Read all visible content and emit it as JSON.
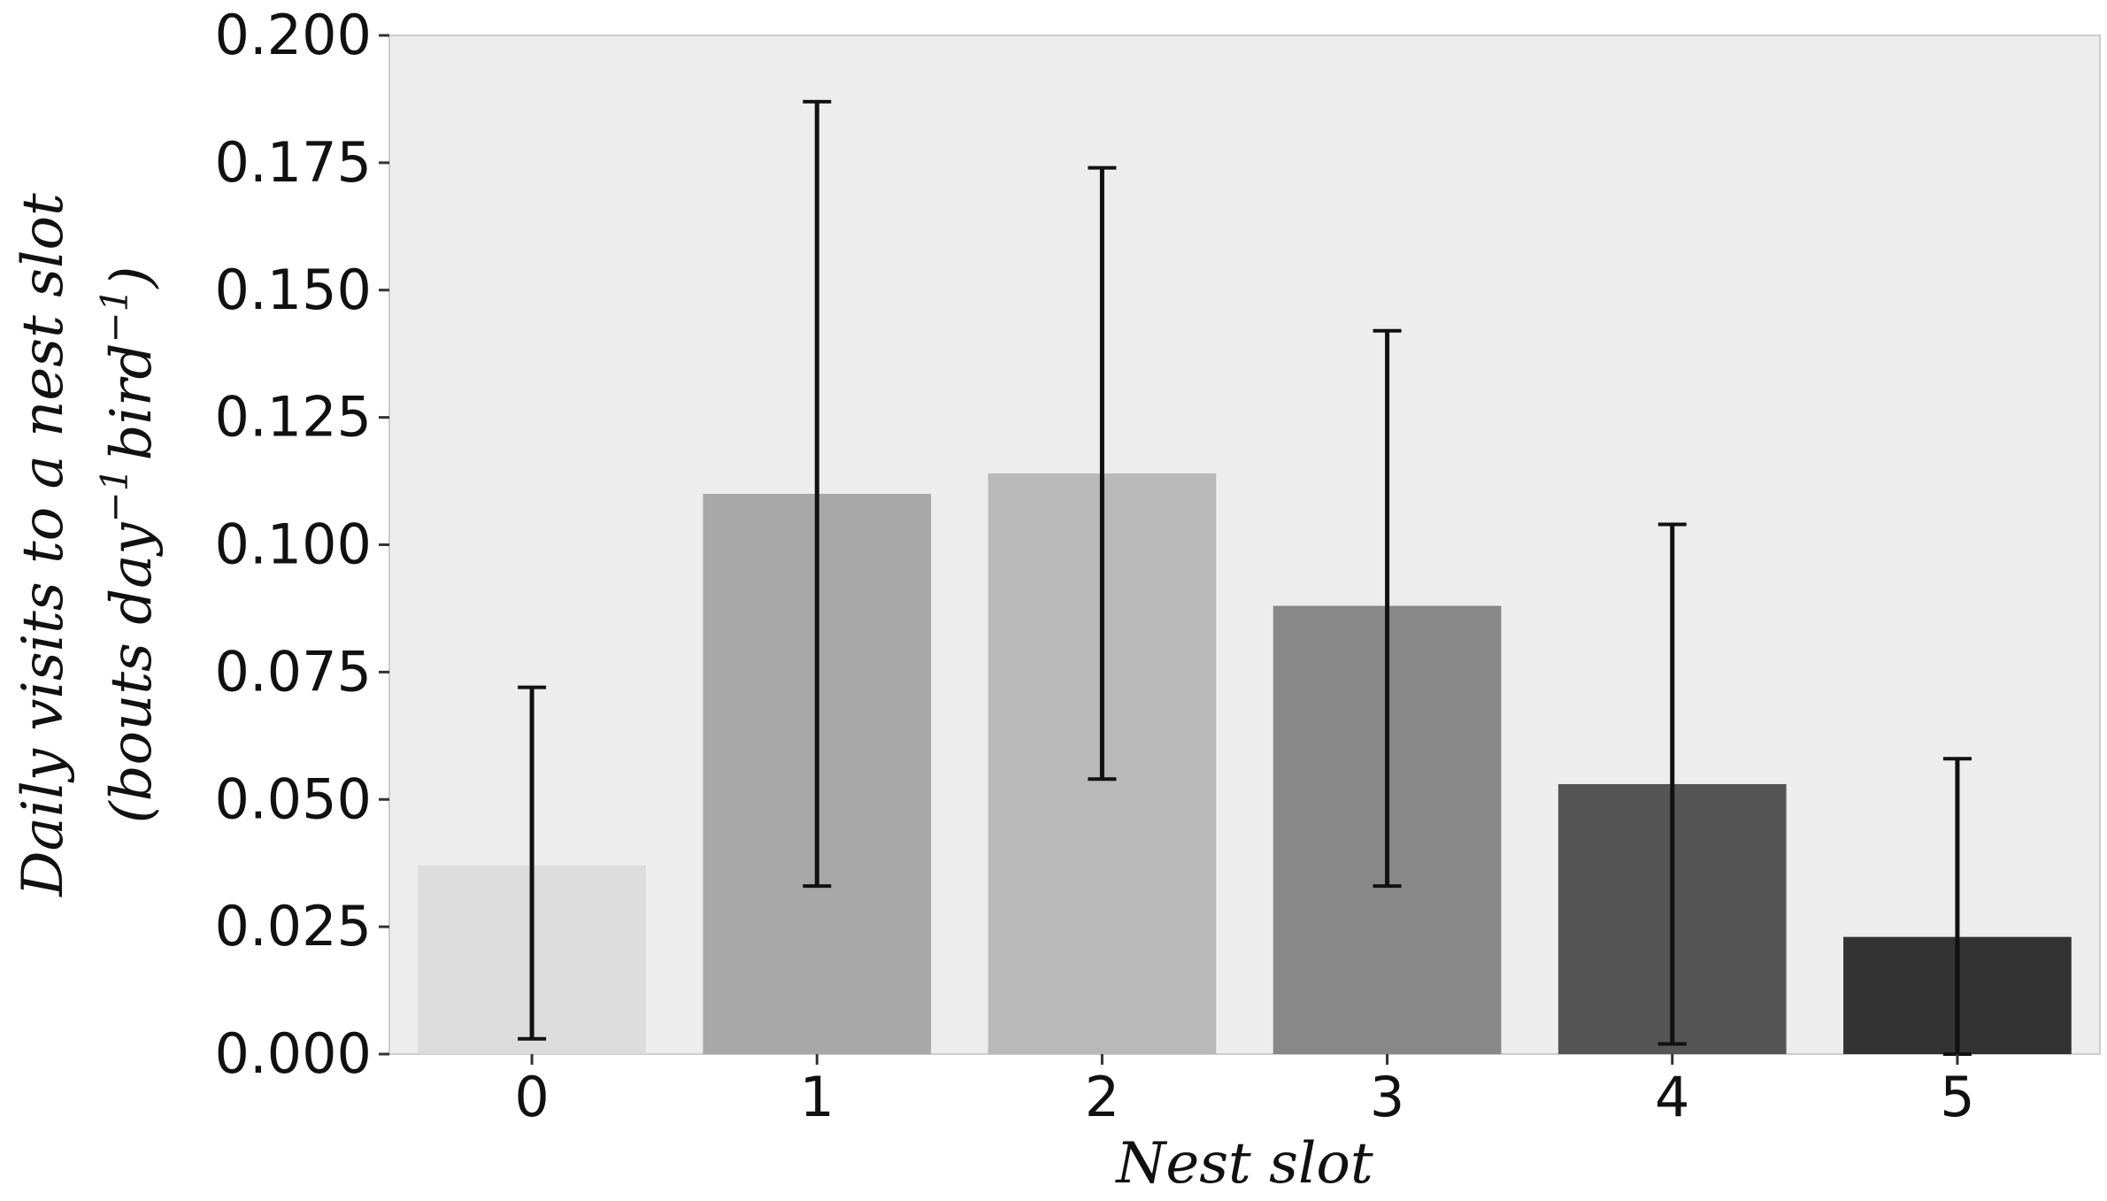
{
  "chart_data": {
    "type": "bar",
    "title": "",
    "xlabel": "Nest slot",
    "ylabel_line1": "Daily visits to a nest slot",
    "ylabel_line2": {
      "prefix": "(bouts day",
      "exp1": "−1",
      "mid": "bird",
      "exp2": "−1",
      "suffix": ")"
    },
    "categories": [
      "0",
      "1",
      "2",
      "3",
      "4",
      "5"
    ],
    "values": [
      0.037,
      0.11,
      0.114,
      0.088,
      0.053,
      0.023
    ],
    "error_low": [
      0.003,
      0.033,
      0.054,
      0.033,
      0.002,
      0.0
    ],
    "error_high": [
      0.072,
      0.187,
      0.174,
      0.142,
      0.104,
      0.058
    ],
    "ylim": [
      0,
      0.2
    ],
    "yticks": [
      "0.000",
      "0.025",
      "0.050",
      "0.075",
      "0.100",
      "0.125",
      "0.150",
      "0.175",
      "0.200"
    ],
    "ytick_values": [
      0,
      0.025,
      0.05,
      0.075,
      0.1,
      0.125,
      0.15,
      0.175,
      0.2
    ],
    "grid": false,
    "legend": "none",
    "colors": {
      "plot_background": "#ededed",
      "bars": [
        "#dcdcdc",
        "#a8a8a8",
        "#b9b9b9",
        "#888888",
        "#555555",
        "#333333"
      ],
      "error_bar": "#111111",
      "axis": "#cccccc",
      "text": "#111111"
    }
  }
}
